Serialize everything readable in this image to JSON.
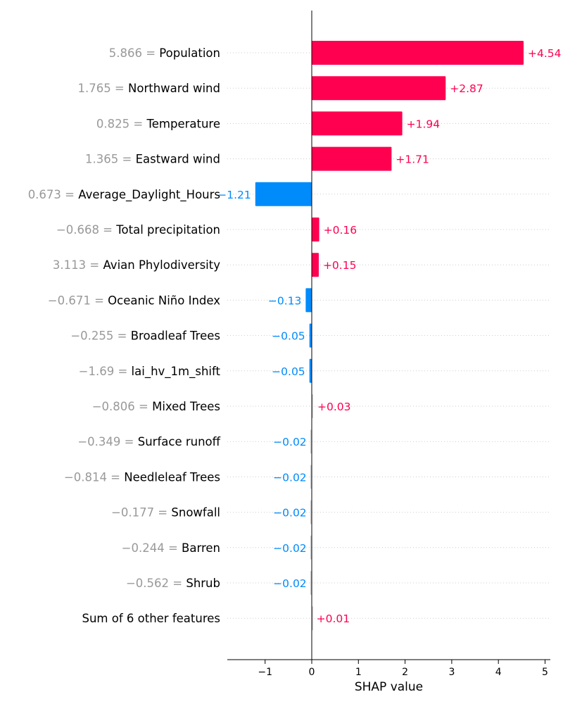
{
  "chart_data": {
    "type": "bar",
    "orientation": "horizontal",
    "xlabel": "SHAP value",
    "xlim": [
      -1.8,
      5.1
    ],
    "xticks": [
      -1,
      0,
      1,
      2,
      3,
      4,
      5
    ],
    "xtick_labels": [
      "−1",
      "0",
      "1",
      "2",
      "3",
      "4",
      "5"
    ],
    "colors": {
      "positive": "#ff0051",
      "negative": "#008bfb",
      "value_text": "#999999",
      "small": "#cccccc"
    },
    "rows": [
      {
        "value": "5.866",
        "feature": "Population",
        "shap": 4.54,
        "label": "+4.54"
      },
      {
        "value": "1.765",
        "feature": "Northward wind",
        "shap": 2.87,
        "label": "+2.87"
      },
      {
        "value": "0.825",
        "feature": "Temperature",
        "shap": 1.94,
        "label": "+1.94"
      },
      {
        "value": "1.365",
        "feature": "Eastward wind",
        "shap": 1.71,
        "label": "+1.71"
      },
      {
        "value": "0.673",
        "feature": "Average_Daylight_Hours",
        "shap": -1.21,
        "label": "−1.21"
      },
      {
        "value": "−0.668",
        "feature": "Total precipitation",
        "shap": 0.16,
        "label": "+0.16"
      },
      {
        "value": "3.113",
        "feature": "Avian Phylodiversity",
        "shap": 0.15,
        "label": "+0.15"
      },
      {
        "value": "−0.671",
        "feature": "Oceanic Niño Index",
        "shap": -0.13,
        "label": "−0.13"
      },
      {
        "value": "−0.255",
        "feature": "Broadleaf Trees",
        "shap": -0.05,
        "label": "−0.05"
      },
      {
        "value": "−1.69",
        "feature": "lai_hv_1m_shift",
        "shap": -0.05,
        "label": "−0.05"
      },
      {
        "value": "−0.806",
        "feature": "Mixed Trees",
        "shap": 0.03,
        "label": "+0.03"
      },
      {
        "value": "−0.349",
        "feature": "Surface runoff",
        "shap": -0.02,
        "label": "−0.02"
      },
      {
        "value": "−0.814",
        "feature": "Needleleaf Trees",
        "shap": -0.02,
        "label": "−0.02"
      },
      {
        "value": "−0.177",
        "feature": "Snowfall",
        "shap": -0.02,
        "label": "−0.02"
      },
      {
        "value": "−0.244",
        "feature": "Barren",
        "shap": -0.02,
        "label": "−0.02"
      },
      {
        "value": "−0.562",
        "feature": "Shrub",
        "shap": -0.02,
        "label": "−0.02"
      },
      {
        "value": "",
        "feature": "Sum of 6 other features",
        "shap": 0.01,
        "label": "+0.01"
      }
    ]
  }
}
